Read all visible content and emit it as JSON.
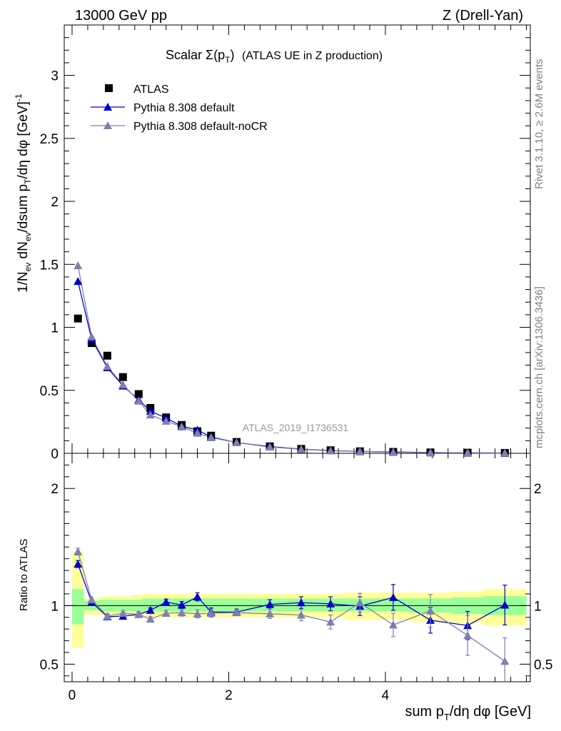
{
  "header": {
    "left": "13000 GeV pp",
    "right": "Z (Drell-Yan)"
  },
  "side": {
    "rivet": "Rivet 3.1.10, ≥ 2.6M events",
    "mcplots": "mcplots.cern.ch [arXiv:1306.3436]"
  },
  "chart_data": [
    {
      "type": "scatter",
      "panel": "main",
      "title": "Scalar Σ(pₜ) (ATLAS UE in Z production)",
      "ylabel": "1/N_ev dN_ev/dsum p_T/dη dφ  [GeV]^-1",
      "watermark": "ATLAS_2019_I1736531",
      "xlim": [
        -0.1,
        5.85
      ],
      "ylim": [
        0,
        3.4
      ],
      "yticks": [
        "0",
        "0.5",
        "1",
        "1.5",
        "2",
        "2.5",
        "3"
      ],
      "grid": false,
      "legend_position": "top-left",
      "x": [
        0.075,
        0.25,
        0.45,
        0.65,
        0.85,
        1.0,
        1.2,
        1.4,
        1.6,
        1.775,
        2.1,
        2.525,
        2.925,
        3.3,
        3.675,
        4.1,
        4.575,
        5.05,
        5.525
      ],
      "series": [
        {
          "name": "ATLAS",
          "marker": "square",
          "color": "#000000",
          "values": [
            1.07,
            0.875,
            0.775,
            0.605,
            0.47,
            0.36,
            0.285,
            0.225,
            0.175,
            0.14,
            0.09,
            0.055,
            0.035,
            0.024,
            0.016,
            0.011,
            0.007,
            0.005,
            0.003
          ]
        },
        {
          "name": "Pythia 8.308 default",
          "marker": "triangle",
          "color": "#0000cc",
          "values": [
            1.365,
            0.905,
            0.68,
            0.535,
            0.425,
            0.335,
            0.28,
            0.215,
            0.185,
            0.13,
            0.085,
            0.054,
            0.033,
            0.022,
            0.015,
            0.0115,
            0.006,
            0.004,
            0.003
          ]
        },
        {
          "name": "Pythia 8.308 default-noCR",
          "marker": "triangle",
          "color": "#7f7fb0",
          "values": [
            1.49,
            0.925,
            0.69,
            0.545,
            0.415,
            0.305,
            0.255,
            0.21,
            0.16,
            0.125,
            0.085,
            0.05,
            0.032,
            0.02,
            0.015,
            0.009,
            0.006,
            0.004,
            0.002
          ]
        }
      ]
    },
    {
      "type": "scatter",
      "panel": "ratio",
      "ylabel": "Ratio to ATLAS",
      "xlabel": "sum p_T/dη dφ [GeV]",
      "xlim": [
        -0.1,
        5.85
      ],
      "ylim": [
        0.35,
        2.3
      ],
      "yticks": [
        "0.5",
        "1",
        "2"
      ],
      "xticks": [
        "0",
        "2",
        "4"
      ],
      "bands": {
        "edges": [
          0.0,
          0.15,
          0.35,
          0.55,
          0.75,
          0.9,
          1.1,
          1.3,
          1.5,
          1.7,
          1.85,
          2.35,
          2.7,
          3.15,
          3.45,
          3.9,
          4.3,
          4.85,
          5.25,
          5.8
        ],
        "stat_lo": [
          0.84,
          0.96,
          0.95,
          0.95,
          0.95,
          0.95,
          0.95,
          0.95,
          0.95,
          0.95,
          0.95,
          0.95,
          0.95,
          0.95,
          0.95,
          0.95,
          0.94,
          0.93,
          0.92
        ],
        "stat_hi": [
          1.14,
          1.04,
          1.05,
          1.05,
          1.05,
          1.06,
          1.06,
          1.06,
          1.06,
          1.06,
          1.06,
          1.06,
          1.06,
          1.06,
          1.06,
          1.06,
          1.06,
          1.07,
          1.08
        ],
        "total_lo": [
          0.64,
          0.92,
          0.92,
          0.91,
          0.9,
          0.9,
          0.9,
          0.9,
          0.9,
          0.9,
          0.9,
          0.9,
          0.9,
          0.9,
          0.88,
          0.88,
          0.86,
          0.85,
          0.83
        ],
        "total_hi": [
          1.46,
          1.06,
          1.08,
          1.08,
          1.09,
          1.1,
          1.1,
          1.1,
          1.1,
          1.1,
          1.1,
          1.1,
          1.1,
          1.1,
          1.11,
          1.11,
          1.11,
          1.12,
          1.14
        ]
      },
      "x": [
        0.075,
        0.25,
        0.45,
        0.65,
        0.85,
        1.0,
        1.2,
        1.4,
        1.6,
        1.775,
        2.1,
        2.525,
        2.925,
        3.3,
        3.675,
        4.1,
        4.575,
        5.05,
        5.525
      ],
      "series": [
        {
          "name": "Pythia 8.308 default",
          "color": "#0000cc",
          "values": [
            1.355,
            1.03,
            0.905,
            0.91,
            0.925,
            0.96,
            1.03,
            1.005,
            1.075,
            0.945,
            0.945,
            1.01,
            1.025,
            1.015,
            0.995,
            1.07,
            0.875,
            0.83,
            1.005
          ],
          "errors": [
            0.03,
            0.02,
            0.02,
            0.02,
            0.02,
            0.02,
            0.025,
            0.03,
            0.035,
            0.035,
            0.025,
            0.04,
            0.05,
            0.06,
            0.08,
            0.11,
            0.11,
            0.12,
            0.17
          ]
        },
        {
          "name": "Pythia 8.308 default-noCR",
          "color": "#7f7fb0",
          "values": [
            1.46,
            1.05,
            0.91,
            0.935,
            0.925,
            0.885,
            0.935,
            0.94,
            0.93,
            0.935,
            0.94,
            0.93,
            0.92,
            0.86,
            1.025,
            0.835,
            0.955,
            0.745,
            0.525
          ],
          "errors": [
            0.03,
            0.02,
            0.02,
            0.02,
            0.02,
            0.02,
            0.025,
            0.03,
            0.035,
            0.035,
            0.025,
            0.04,
            0.05,
            0.06,
            0.08,
            0.1,
            0.14,
            0.17,
            0.2
          ]
        }
      ]
    }
  ]
}
